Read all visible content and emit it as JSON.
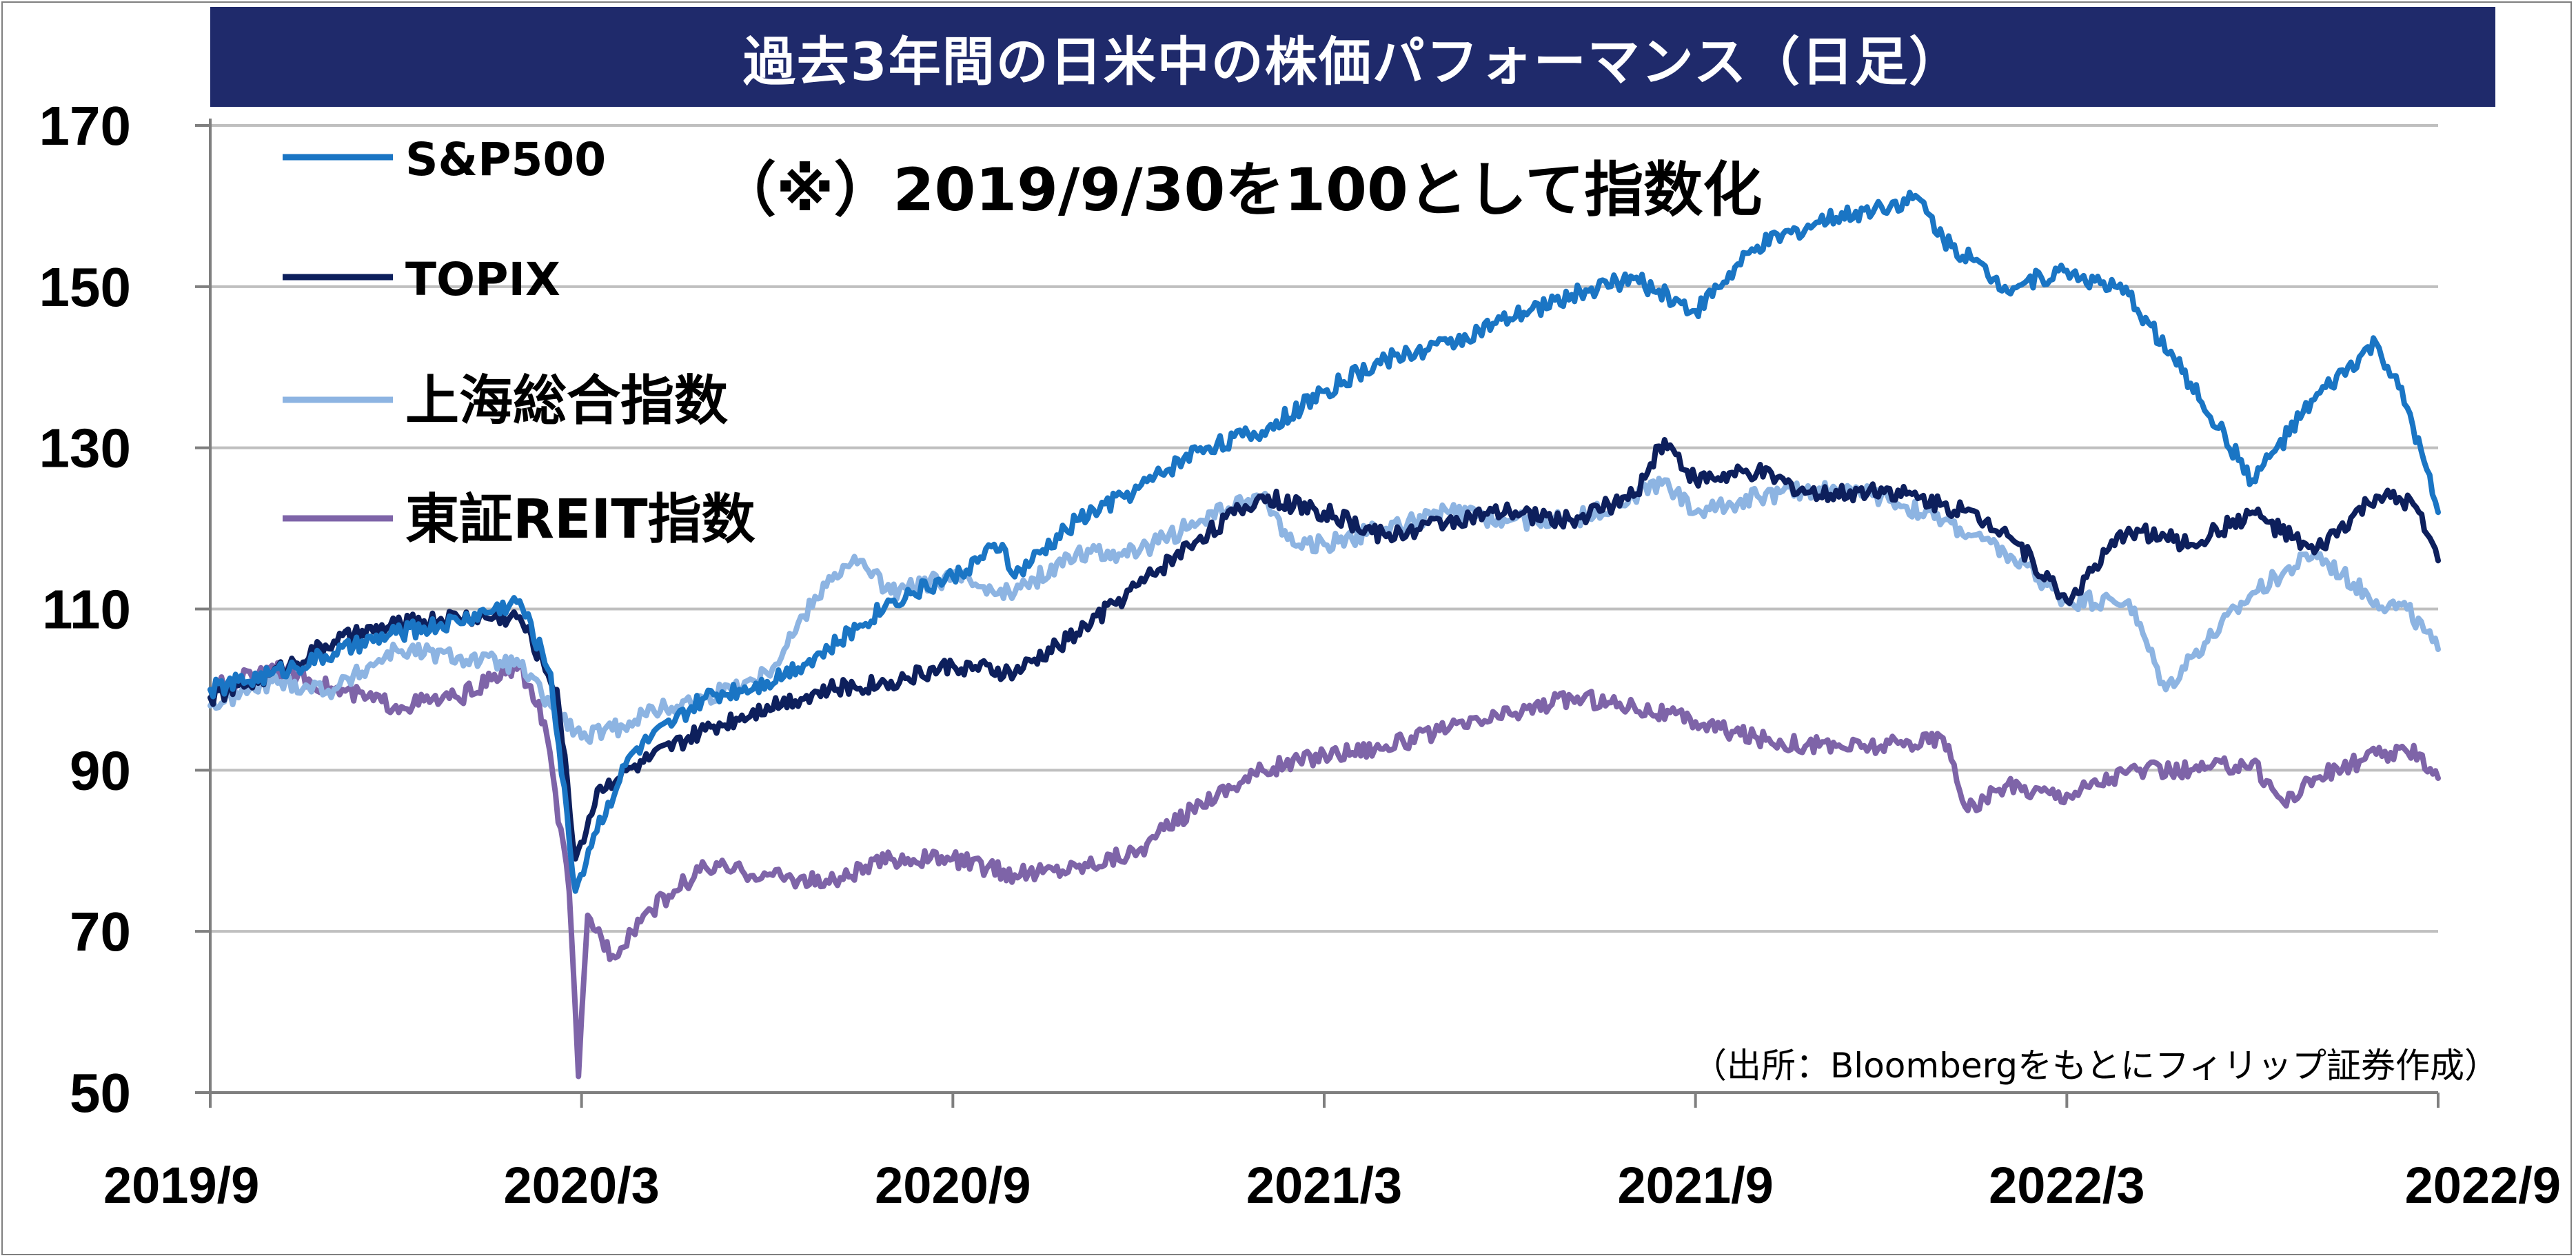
{
  "title": "過去3年間の日米中の株価パフォーマンス（日足）",
  "note": "（※）2019/9/30を100として指数化",
  "source": "（出所：Bloombergをもとにフィリップ証券作成）",
  "colors": {
    "title_bg": "#1f2a6b",
    "sp500": "#1a75c4",
    "topix": "#0d1f5c",
    "shanghai": "#8db4e2",
    "reit": "#7e64a8",
    "grid": "#bfbfbf",
    "axis": "#7f7f7f"
  },
  "chart_data": {
    "type": "line",
    "x_ticks": [
      "2019/9",
      "2020/3",
      "2020/9",
      "2021/3",
      "2021/9",
      "2022/3",
      "2022/9"
    ],
    "y_ticks": [
      50,
      70,
      90,
      110,
      130,
      150,
      170
    ],
    "ylim": [
      50,
      170
    ],
    "xlim": [
      0,
      36
    ],
    "x_unit": "months since 2019/9",
    "legend_position": "top-left",
    "grid": "horizontal",
    "series": [
      {
        "key": "sp500",
        "name": "S&P500",
        "points": [
          [
            0,
            100
          ],
          [
            1,
            102
          ],
          [
            2,
            104.5
          ],
          [
            3,
            107
          ],
          [
            4,
            108.5
          ],
          [
            5,
            111
          ],
          [
            5.5,
            102
          ],
          [
            5.9,
            75
          ],
          [
            6.2,
            82
          ],
          [
            6.8,
            92
          ],
          [
            7.5,
            96
          ],
          [
            8,
            99
          ],
          [
            9,
            101
          ],
          [
            10,
            105
          ],
          [
            10.5,
            108
          ],
          [
            11,
            111
          ],
          [
            12,
            114
          ],
          [
            12.8,
            118
          ],
          [
            13,
            114
          ],
          [
            14,
            121
          ],
          [
            15,
            125
          ],
          [
            16,
            130
          ],
          [
            17,
            132
          ],
          [
            18,
            137
          ],
          [
            19,
            141
          ],
          [
            20,
            143
          ],
          [
            21,
            146
          ],
          [
            22,
            149
          ],
          [
            23,
            151
          ],
          [
            24,
            147
          ],
          [
            25,
            155
          ],
          [
            26,
            158
          ],
          [
            27,
            160
          ],
          [
            27.6,
            161
          ],
          [
            28,
            156
          ],
          [
            29,
            150
          ],
          [
            30,
            152
          ],
          [
            31,
            149
          ],
          [
            32,
            138
          ],
          [
            33,
            126
          ],
          [
            34,
            136
          ],
          [
            35,
            143
          ],
          [
            35.5,
            135
          ],
          [
            36,
            122
          ]
        ]
      },
      {
        "key": "topix",
        "name": "TOPIX",
        "points": [
          [
            0,
            99
          ],
          [
            1,
            102
          ],
          [
            2,
            106
          ],
          [
            3,
            108
          ],
          [
            4,
            109
          ],
          [
            5,
            109
          ],
          [
            5.6,
            100
          ],
          [
            5.9,
            79
          ],
          [
            6.3,
            88
          ],
          [
            7,
            91
          ],
          [
            8,
            95
          ],
          [
            9,
            98
          ],
          [
            10,
            100
          ],
          [
            11,
            101
          ],
          [
            12,
            103
          ],
          [
            13,
            102
          ],
          [
            14,
            107
          ],
          [
            15,
            113
          ],
          [
            16,
            119
          ],
          [
            17,
            124
          ],
          [
            18,
            122
          ],
          [
            19,
            119
          ],
          [
            20,
            121
          ],
          [
            21,
            122
          ],
          [
            22,
            121
          ],
          [
            23,
            124
          ],
          [
            23.5,
            131
          ],
          [
            24,
            126
          ],
          [
            25,
            127
          ],
          [
            26,
            124
          ],
          [
            27,
            125
          ],
          [
            28,
            123
          ],
          [
            29,
            120
          ],
          [
            30,
            111
          ],
          [
            31,
            120
          ],
          [
            32,
            118
          ],
          [
            33,
            122
          ],
          [
            34,
            117
          ],
          [
            35,
            124
          ],
          [
            35.6,
            123
          ],
          [
            36,
            116
          ]
        ]
      },
      {
        "key": "shanghai",
        "name": "上海総合指数",
        "points": [
          [
            0,
            98
          ],
          [
            1,
            101
          ],
          [
            2,
            100
          ],
          [
            3,
            105
          ],
          [
            4,
            104
          ],
          [
            5,
            103
          ],
          [
            5.5,
            98
          ],
          [
            6,
            94
          ],
          [
            6.5,
            95
          ],
          [
            7,
            97
          ],
          [
            8,
            99
          ],
          [
            9,
            102
          ],
          [
            10,
            114
          ],
          [
            10.5,
            116
          ],
          [
            11,
            112
          ],
          [
            12,
            114
          ],
          [
            13,
            112
          ],
          [
            14,
            117
          ],
          [
            15,
            117
          ],
          [
            16,
            121
          ],
          [
            17,
            124
          ],
          [
            17.5,
            118
          ],
          [
            18,
            118
          ],
          [
            19,
            120
          ],
          [
            20,
            122
          ],
          [
            21,
            121
          ],
          [
            22,
            121
          ],
          [
            23,
            124
          ],
          [
            23.5,
            126
          ],
          [
            24,
            122
          ],
          [
            25,
            124
          ],
          [
            26,
            125
          ],
          [
            27,
            124
          ],
          [
            28,
            121
          ],
          [
            29,
            117
          ],
          [
            30,
            111
          ],
          [
            31,
            111
          ],
          [
            31.6,
            100
          ],
          [
            32,
            104
          ],
          [
            33,
            112
          ],
          [
            34,
            117
          ],
          [
            35,
            111
          ],
          [
            35.5,
            110
          ],
          [
            36,
            105
          ]
        ]
      },
      {
        "key": "reit",
        "name": "東証REIT指数",
        "points": [
          [
            0,
            100
          ],
          [
            1,
            103
          ],
          [
            2,
            100
          ],
          [
            3,
            98
          ],
          [
            4,
            99
          ],
          [
            5,
            103
          ],
          [
            5.4,
            96
          ],
          [
            5.8,
            75
          ],
          [
            5.95,
            52
          ],
          [
            6.1,
            72
          ],
          [
            6.5,
            67
          ],
          [
            7,
            72
          ],
          [
            7.5,
            75
          ],
          [
            8,
            78
          ],
          [
            9,
            77
          ],
          [
            10,
            76
          ],
          [
            11,
            79
          ],
          [
            12,
            79
          ],
          [
            13,
            77
          ],
          [
            14,
            78
          ],
          [
            15,
            80
          ],
          [
            16,
            86
          ],
          [
            17,
            90
          ],
          [
            18,
            92
          ],
          [
            19,
            93
          ],
          [
            20,
            95
          ],
          [
            21,
            97
          ],
          [
            22,
            99
          ],
          [
            23,
            98
          ],
          [
            24,
            96
          ],
          [
            25,
            94
          ],
          [
            26,
            93
          ],
          [
            27,
            93
          ],
          [
            28,
            94
          ],
          [
            28.4,
            85
          ],
          [
            29,
            88
          ],
          [
            30,
            87
          ],
          [
            31,
            90
          ],
          [
            32,
            90
          ],
          [
            33,
            91
          ],
          [
            33.5,
            86
          ],
          [
            34,
            89
          ],
          [
            35,
            92
          ],
          [
            35.7,
            92
          ],
          [
            36,
            89
          ]
        ]
      }
    ]
  }
}
